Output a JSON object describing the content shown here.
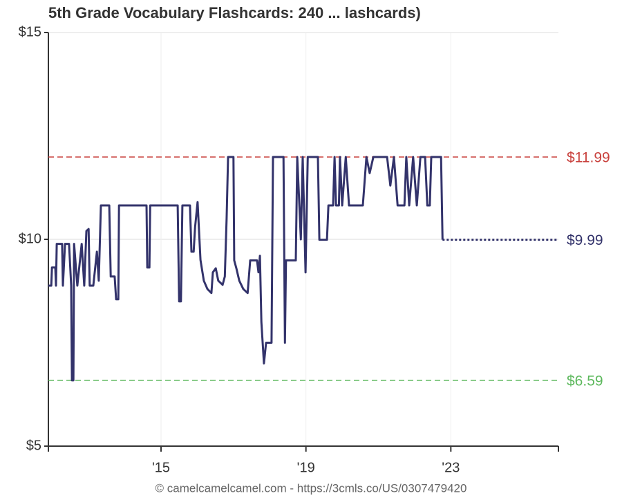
{
  "chart_data": {
    "type": "line",
    "title": "5th Grade Vocabulary Flashcards: 240 ... lashcards)",
    "footer": "© camelcamelcamel.com - https://3cmls.co/US/0307479420",
    "xlim": [
      2011.89,
      2025.97
    ],
    "xticks": [
      {
        "value": 2015,
        "label": "'15"
      },
      {
        "value": 2019,
        "label": "'19"
      },
      {
        "value": 2023,
        "label": "'23"
      }
    ],
    "ylim": [
      5,
      15
    ],
    "yticks": [
      {
        "value": 5,
        "label": "$5"
      },
      {
        "value": 10,
        "label": "$10"
      },
      {
        "value": 15,
        "label": "$15"
      }
    ],
    "grid": true,
    "series": [
      {
        "color": "#33336b",
        "style": "solid",
        "x": [
          2011.89,
          2011.97,
          2011.99,
          2012.08,
          2012.1,
          2012.12,
          2012.27,
          2012.29,
          2012.35,
          2012.46,
          2012.52,
          2012.54,
          2012.58,
          2012.6,
          2012.69,
          2012.81,
          2012.88,
          2012.94,
          2013.0,
          2013.03,
          2013.13,
          2013.23,
          2013.28,
          2013.34,
          2013.57,
          2013.61,
          2013.72,
          2013.76,
          2013.82,
          2013.84,
          2014.6,
          2014.62,
          2014.68,
          2014.7,
          2015.46,
          2015.5,
          2015.55,
          2015.59,
          2015.8,
          2015.84,
          2015.9,
          2015.94,
          2016.01,
          2016.09,
          2016.18,
          2016.28,
          2016.39,
          2016.43,
          2016.51,
          2016.58,
          2016.7,
          2016.76,
          2016.81,
          2016.85,
          2017.0,
          2017.02,
          2017.08,
          2017.16,
          2017.27,
          2017.39,
          2017.46,
          2017.65,
          2017.69,
          2017.73,
          2017.77,
          2017.84,
          2017.9,
          2018.05,
          2018.09,
          2018.38,
          2018.42,
          2018.45,
          2018.72,
          2018.76,
          2018.86,
          2018.91,
          2018.99,
          2019.05,
          2019.33,
          2019.37,
          2019.58,
          2019.62,
          2019.75,
          2019.79,
          2019.83,
          2019.91,
          2019.94,
          2020.0,
          2020.1,
          2020.19,
          2020.57,
          2020.67,
          2020.76,
          2020.86,
          2021.24,
          2021.33,
          2021.43,
          2021.53,
          2021.72,
          2021.77,
          2021.85,
          2021.96,
          2022.06,
          2022.16,
          2022.29,
          2022.35,
          2022.42,
          2022.46,
          2022.73,
          2022.77
        ],
        "values": [
          8.88,
          8.88,
          9.32,
          9.32,
          8.88,
          9.89,
          9.89,
          8.88,
          9.89,
          9.89,
          8.88,
          6.59,
          6.59,
          9.89,
          8.88,
          9.89,
          8.88,
          10.2,
          10.25,
          8.88,
          8.88,
          9.7,
          9.0,
          10.82,
          10.82,
          9.1,
          9.1,
          8.55,
          8.55,
          10.82,
          10.82,
          9.32,
          9.32,
          10.82,
          10.82,
          8.5,
          8.5,
          10.82,
          10.82,
          9.7,
          9.7,
          10.3,
          10.9,
          9.5,
          9.0,
          8.8,
          8.7,
          9.2,
          9.3,
          9.0,
          8.9,
          9.1,
          10.5,
          11.99,
          11.99,
          9.49,
          9.3,
          9.0,
          8.8,
          8.7,
          9.49,
          9.49,
          9.2,
          9.6,
          8.0,
          7.0,
          7.5,
          7.5,
          11.99,
          11.99,
          7.5,
          9.49,
          9.49,
          11.99,
          10.0,
          11.99,
          9.2,
          11.99,
          11.99,
          9.99,
          9.99,
          10.82,
          10.82,
          11.99,
          10.82,
          10.82,
          11.99,
          10.82,
          11.99,
          10.82,
          10.82,
          11.99,
          11.6,
          11.99,
          11.99,
          11.3,
          11.99,
          10.82,
          10.82,
          11.99,
          10.82,
          11.99,
          10.82,
          11.99,
          11.99,
          10.82,
          10.82,
          11.99,
          11.99,
          9.99
        ]
      },
      {
        "color": "#33336b",
        "style": "dotted",
        "x": [
          2022.77,
          2025.97
        ],
        "values": [
          9.99,
          9.99
        ]
      }
    ],
    "reference_lines": [
      {
        "value": 11.99,
        "label": "$11.99",
        "color": "#c9413d",
        "style": "dashed"
      },
      {
        "value": 6.59,
        "label": "$6.59",
        "color": "#5cb85c",
        "style": "dashed"
      }
    ],
    "annotations": [
      {
        "value": 9.99,
        "label": "$9.99",
        "color": "#33336b"
      }
    ]
  }
}
